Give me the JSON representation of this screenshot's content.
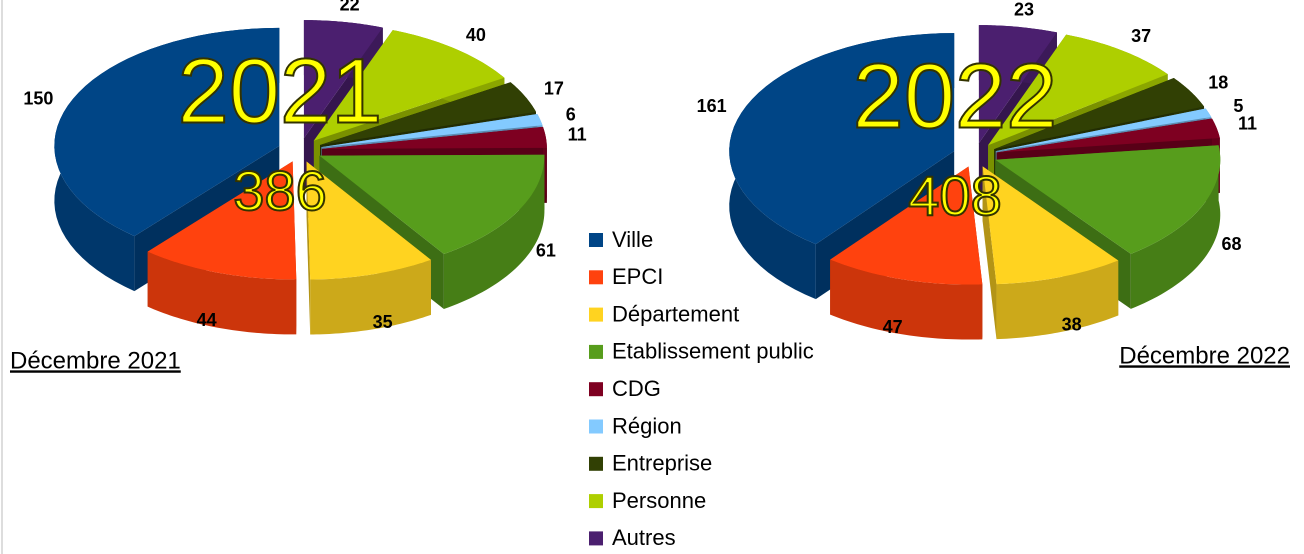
{
  "legend": {
    "categories": [
      "Ville",
      "EPCI",
      "Département",
      "Etablissement public",
      "CDG",
      "Région",
      "Entreprise",
      "Personne",
      "Autres"
    ],
    "colors": [
      "#004586",
      "#ff420e",
      "#ffd320",
      "#579d1c",
      "#7e0021",
      "#83caff",
      "#314004",
      "#aecf00",
      "#4b1f6f"
    ]
  },
  "chart_data": [
    {
      "type": "pie",
      "title": "2021",
      "total": 386,
      "subtitle": "Décembre 2021",
      "values": [
        150,
        44,
        35,
        61,
        11,
        6,
        17,
        40,
        22
      ]
    },
    {
      "type": "pie",
      "title": "2022",
      "total": 408,
      "subtitle": "Décembre 2022",
      "values": [
        161,
        47,
        38,
        68,
        11,
        5,
        18,
        37,
        23
      ]
    }
  ]
}
